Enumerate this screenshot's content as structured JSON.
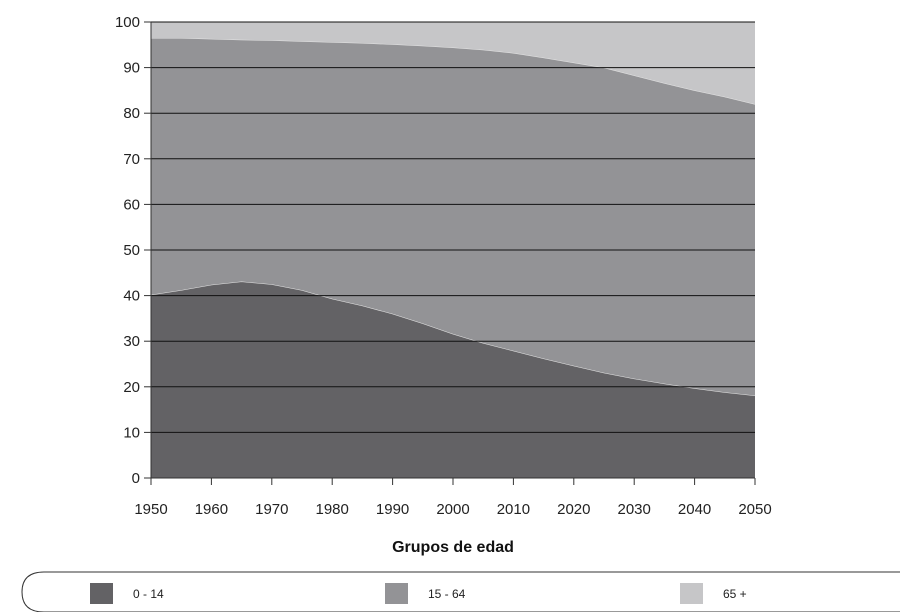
{
  "chart_data": {
    "type": "area",
    "stacked": true,
    "title": "",
    "xlabel": "Grupos de edad",
    "ylabel": "",
    "xlim": [
      1950,
      2050
    ],
    "ylim": [
      0,
      100
    ],
    "x_ticks": [
      1950,
      1960,
      1970,
      1980,
      1990,
      2000,
      2010,
      2020,
      2030,
      2040,
      2050
    ],
    "y_ticks": [
      0,
      10,
      20,
      30,
      40,
      50,
      60,
      70,
      80,
      90,
      100
    ],
    "grid": true,
    "legend_position": "bottom",
    "x": [
      1950,
      1955,
      1960,
      1965,
      1970,
      1975,
      1980,
      1985,
      1990,
      1995,
      2000,
      2005,
      2010,
      2015,
      2020,
      2025,
      2030,
      2035,
      2040,
      2045,
      2050
    ],
    "series": [
      {
        "name": "0 - 14",
        "color": "#636265",
        "values": [
          40.2,
          41.2,
          42.4,
          43.1,
          42.5,
          41.2,
          39.3,
          37.8,
          36.0,
          33.9,
          31.6,
          29.6,
          27.9,
          26.2,
          24.6,
          23.1,
          21.8,
          20.7,
          19.7,
          18.8,
          18.1
        ]
      },
      {
        "name": "15 - 64",
        "color": "#939396",
        "values": [
          56.3,
          55.3,
          53.9,
          53.0,
          53.5,
          54.6,
          56.3,
          57.6,
          59.1,
          60.9,
          62.8,
          64.3,
          65.3,
          66.0,
          66.5,
          66.9,
          66.5,
          65.9,
          65.3,
          64.8,
          63.9
        ]
      },
      {
        "name": "65 +",
        "color": "#c6c6c8",
        "values": [
          3.5,
          3.5,
          3.7,
          3.9,
          4.0,
          4.2,
          4.4,
          4.6,
          4.9,
          5.2,
          5.6,
          6.1,
          6.8,
          7.8,
          8.9,
          10.0,
          11.7,
          13.4,
          15.0,
          16.4,
          18.0
        ]
      }
    ]
  },
  "colors": {
    "grid": "#111111",
    "frame": "#333333",
    "page": "#ffffff"
  }
}
